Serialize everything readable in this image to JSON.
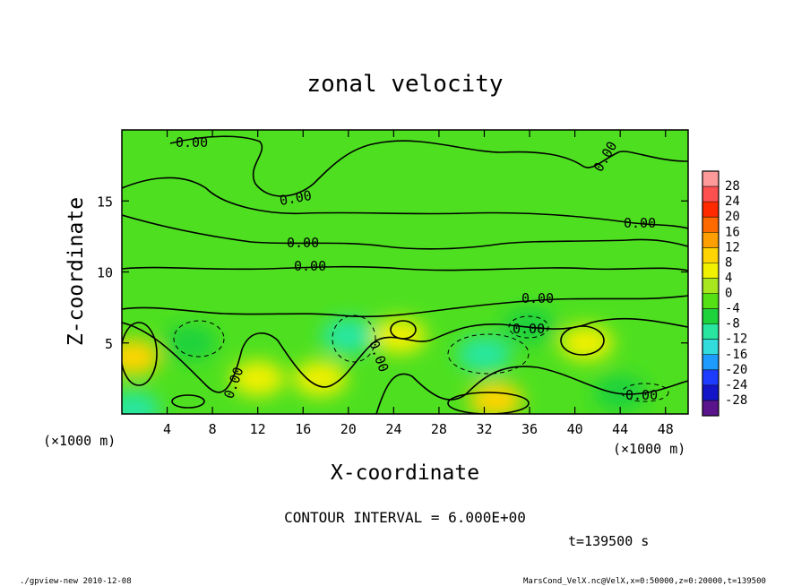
{
  "chart_data": {
    "type": "heatmap",
    "title": "zonal velocity",
    "xlabel": "X-coordinate",
    "ylabel": "Z-coordinate",
    "x_unit": "(×1000 m)",
    "y_unit": "(×1000 m)",
    "xlim": [
      0,
      50
    ],
    "ylim": [
      0,
      20
    ],
    "x_ticks": [
      4,
      8,
      12,
      16,
      20,
      24,
      28,
      32,
      36,
      40,
      44,
      48
    ],
    "y_ticks": [
      5,
      10,
      15
    ],
    "contour_interval_text": "CONTOUR INTERVAL = 6.000E+00",
    "time_text": "t=139500 s",
    "contour_label": "0.00",
    "colorbar": {
      "levels": [
        28,
        24,
        20,
        16,
        12,
        8,
        4,
        0,
        -4,
        -8,
        -12,
        -16,
        -20,
        -24,
        -28
      ],
      "colors": [
        "#ff9a9a",
        "#ff5050",
        "#ff2a00",
        "#ff6a00",
        "#ffa000",
        "#ffd400",
        "#f0f000",
        "#a8e61e",
        "#54e014",
        "#1ed23c",
        "#28e6a0",
        "#32dcdc",
        "#1e9bff",
        "#1e3cff",
        "#1414c8",
        "#5a148c"
      ]
    },
    "field_anomalies": [
      {
        "x": 1,
        "z": 4,
        "v": 8
      },
      {
        "x": 6,
        "z": 5,
        "v": -8
      },
      {
        "x": 12,
        "z": 2.5,
        "v": 6
      },
      {
        "x": 17.5,
        "z": 2.5,
        "v": 6
      },
      {
        "x": 20,
        "z": 5.5,
        "v": -10
      },
      {
        "x": 24.5,
        "z": 5.5,
        "v": 6
      },
      {
        "x": 32,
        "z": 4.2,
        "v": -12
      },
      {
        "x": 33,
        "z": 1,
        "v": 9
      },
      {
        "x": 41,
        "z": 5,
        "v": 6
      },
      {
        "x": 44,
        "z": 1.5,
        "v": -6
      },
      {
        "x": 1,
        "z": 0.3,
        "v": -12
      },
      {
        "x": 36,
        "z": 6.2,
        "v": -5
      }
    ]
  },
  "footer": {
    "left": "./gpview-new  2010-12-08",
    "right": "MarsCond_VelX.nc@VelX,x=0:50000,z=0:20000,t=139500"
  }
}
